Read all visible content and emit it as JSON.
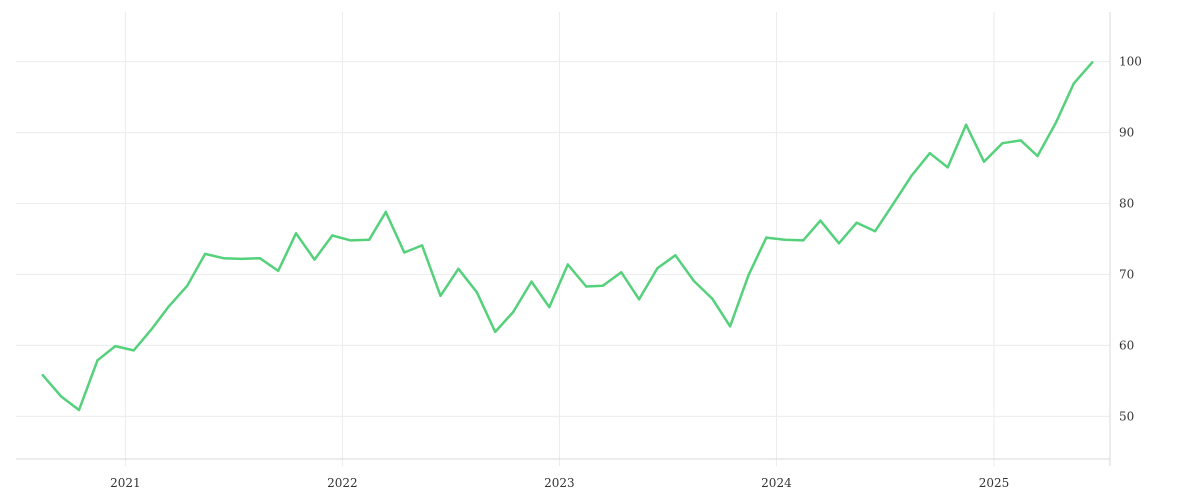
{
  "chart_data": {
    "type": "line",
    "title": "",
    "xlabel": "",
    "ylabel": "",
    "grid": true,
    "y_axis_side": "right",
    "ylim": [
      43,
      107
    ],
    "xlim": [
      "2020-07-01",
      "2025-07-15"
    ],
    "x_ticks": [
      {
        "label": "2021",
        "date": "2021-01-01"
      },
      {
        "label": "2022",
        "date": "2022-01-01"
      },
      {
        "label": "2023",
        "date": "2023-01-01"
      },
      {
        "label": "2024",
        "date": "2024-01-01"
      },
      {
        "label": "2025",
        "date": "2025-01-01"
      }
    ],
    "y_ticks": [
      {
        "label": "50",
        "value": 50
      },
      {
        "label": "60",
        "value": 60
      },
      {
        "label": "70",
        "value": 70
      },
      {
        "label": "80",
        "value": 80
      },
      {
        "label": "90",
        "value": 90
      },
      {
        "label": "100",
        "value": 100
      }
    ],
    "series": [
      {
        "name": "",
        "color": "#55d17c",
        "x": [
          "2020-08",
          "2020-09",
          "2020-10",
          "2020-11",
          "2020-12",
          "2021-01",
          "2021-02",
          "2021-03",
          "2021-04",
          "2021-05",
          "2021-06",
          "2021-07",
          "2021-08",
          "2021-09",
          "2021-10",
          "2021-11",
          "2021-12",
          "2022-01",
          "2022-02",
          "2022-03",
          "2022-04",
          "2022-05",
          "2022-06",
          "2022-07",
          "2022-08",
          "2022-09",
          "2022-10",
          "2022-11",
          "2022-12",
          "2023-01",
          "2023-02",
          "2023-03",
          "2023-04",
          "2023-05",
          "2023-06",
          "2023-07",
          "2023-08",
          "2023-09",
          "2023-10",
          "2023-11",
          "2023-12",
          "2024-01",
          "2024-02",
          "2024-03",
          "2024-04",
          "2024-05",
          "2024-06",
          "2024-07",
          "2024-08",
          "2024-09",
          "2024-10",
          "2024-11",
          "2024-12",
          "2025-01",
          "2025-02",
          "2025-03",
          "2025-04",
          "2025-05",
          "2025-06"
        ],
        "values": [
          55.8,
          52.8,
          50.9,
          57.9,
          59.9,
          59.3,
          62.4,
          65.5,
          68.4,
          72.9,
          72.3,
          72.2,
          72.3,
          70.5,
          75.8,
          72.1,
          75.5,
          74.8,
          74.9,
          78.8,
          73.1,
          74.1,
          67.0,
          70.8,
          67.5,
          61.9,
          64.7,
          69.0,
          65.4,
          71.4,
          68.3,
          68.4,
          70.3,
          66.5,
          70.9,
          72.7,
          69.1,
          66.6,
          62.7,
          69.9,
          75.2,
          74.9,
          74.8,
          77.6,
          74.4,
          77.3,
          76.1,
          79.9,
          83.9,
          87.1,
          85.1,
          91.1,
          85.9,
          88.5,
          88.9,
          86.7,
          91.4,
          96.9,
          99.9
        ]
      }
    ]
  }
}
